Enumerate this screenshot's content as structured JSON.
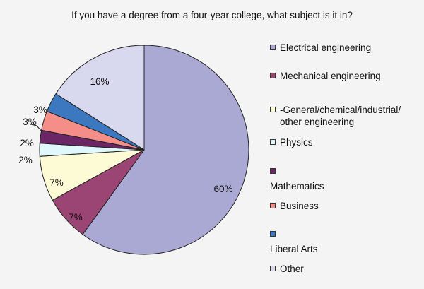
{
  "chart_data": {
    "type": "pie",
    "title": "If you have a degree from a four-year college, what subject is it in?",
    "categories": [
      "Electrical engineering",
      "Mechanical engineering",
      "General/chemical/industrial/ other engineering",
      "Physics",
      "Mathematics",
      "Business",
      "Liberal Arts",
      "Other"
    ],
    "values": [
      60,
      7,
      7,
      2,
      2,
      3,
      3,
      16
    ],
    "data_labels": [
      "60%",
      "7%",
      "7%",
      "2%",
      "2%",
      "3%",
      "3%",
      "16%"
    ],
    "colors": [
      "#aaa9d4",
      "#9a4574",
      "#fdfbd6",
      "#e0f8fb",
      "#6b2666",
      "#f58d89",
      "#3b78c0",
      "#d8d8ee"
    ],
    "start_angle_deg": 0,
    "direction": "clockwise",
    "legend": "right",
    "legend_labels": [
      "Electrical engineering",
      "Mechanical engineering",
      "-General/chemical/industrial/\nother engineering",
      "Physics",
      "Mathematics",
      "Business",
      "Liberal Arts",
      "Other"
    ]
  }
}
